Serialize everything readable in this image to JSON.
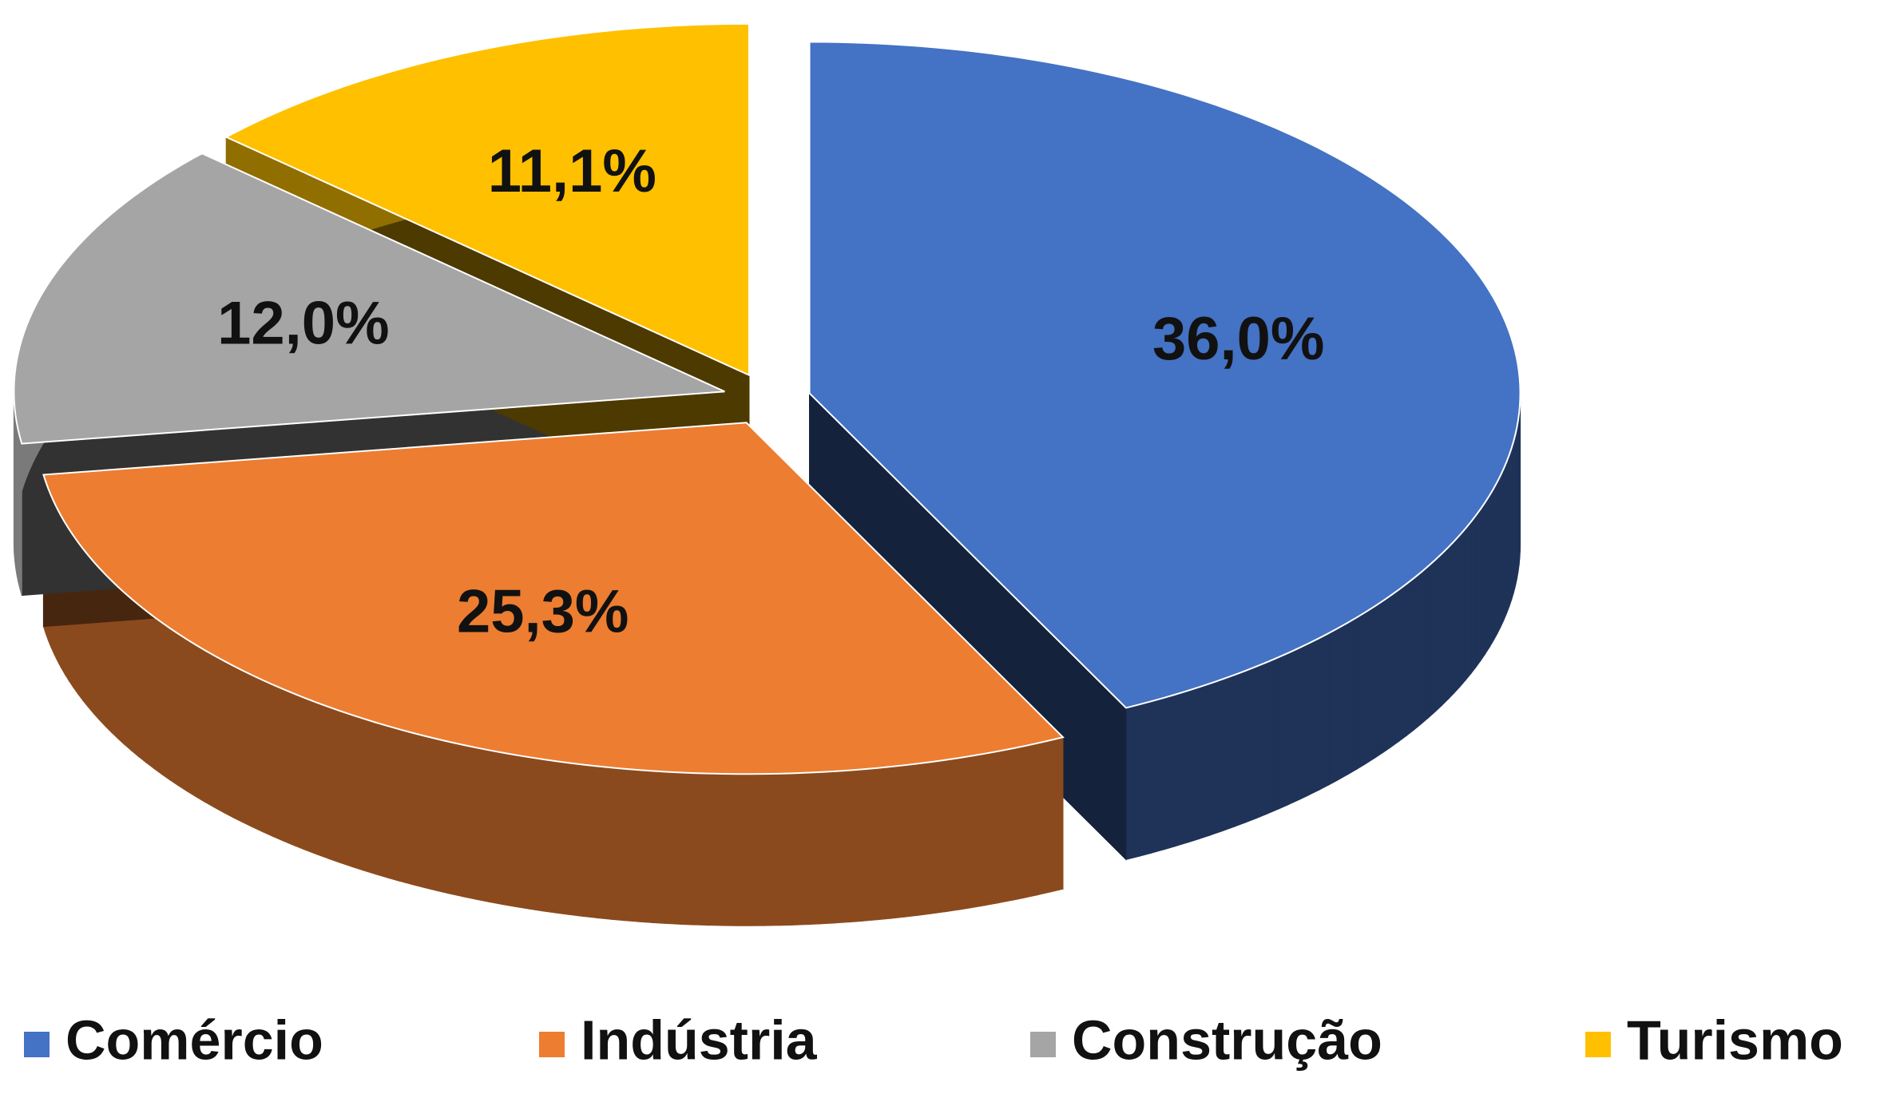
{
  "chart_data": {
    "type": "pie",
    "categories": [
      "Comércio",
      "Indústria",
      "Construção",
      "Turismo"
    ],
    "values": [
      36.0,
      25.3,
      12.0,
      11.1
    ],
    "value_labels": [
      "36,0%",
      "25,3%",
      "12,0%",
      "11,1%"
    ],
    "colors": [
      "#4472c4",
      "#ed7d31",
      "#a5a5a5",
      "#ffc000"
    ],
    "legend": "bottom"
  }
}
